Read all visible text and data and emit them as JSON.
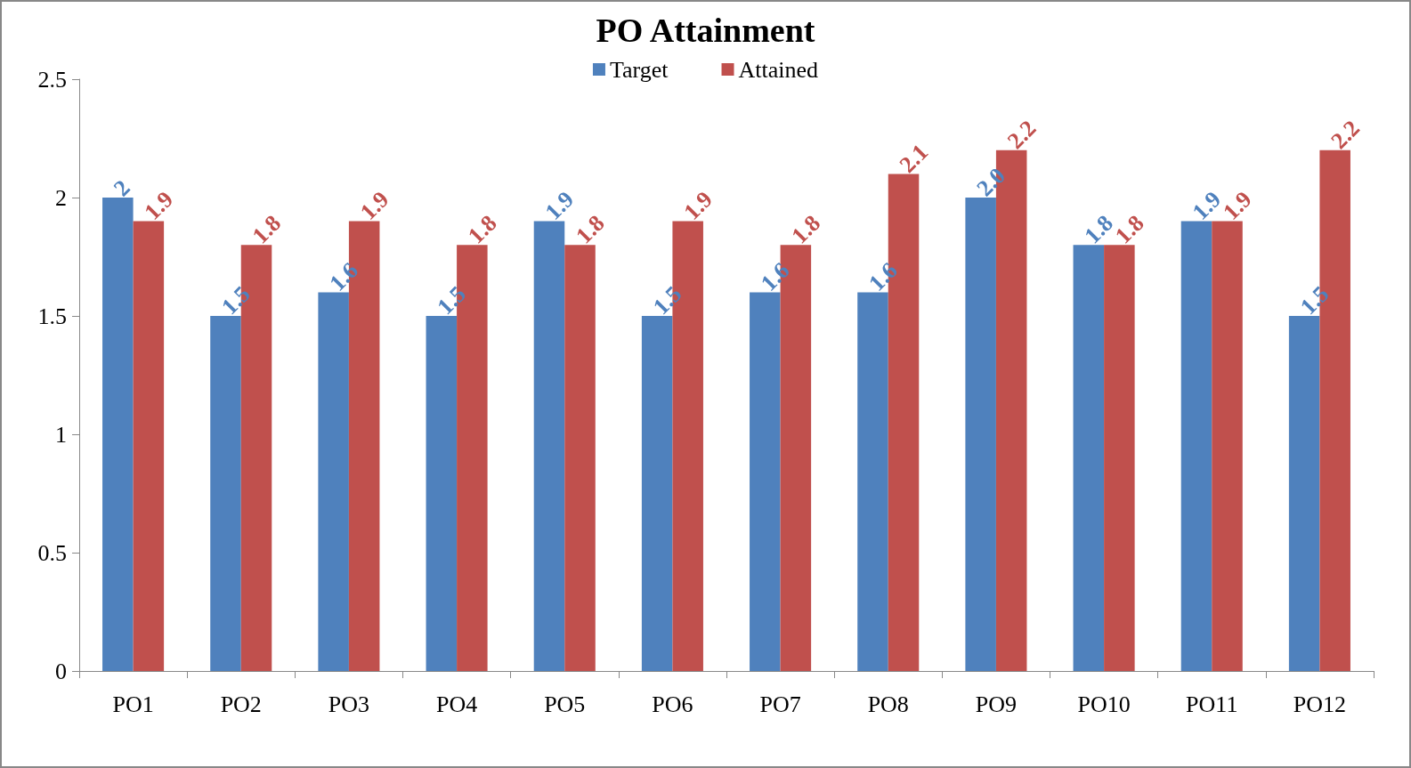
{
  "chart_data": {
    "type": "bar",
    "title": "PO Attainment",
    "categories": [
      "PO1",
      "PO2",
      "PO3",
      "PO4",
      "PO5",
      "PO6",
      "PO7",
      "PO8",
      "PO9",
      "PO10",
      "PO11",
      "PO12"
    ],
    "series": [
      {
        "name": "Target",
        "color": "#4f81bd",
        "values": [
          2,
          1.5,
          1.6,
          1.5,
          1.9,
          1.5,
          1.6,
          1.6,
          2.0,
          1.8,
          1.9,
          1.5
        ],
        "value_labels": [
          "2",
          "1.5",
          "1.6",
          "1.5",
          "1.9",
          "1.5",
          "1.6",
          "1.6",
          "2.0",
          "1.8",
          "1.9",
          "1.5"
        ]
      },
      {
        "name": "Attained",
        "color": "#c0504d",
        "values": [
          1.9,
          1.8,
          1.9,
          1.8,
          1.8,
          1.9,
          1.8,
          2.1,
          2.2,
          1.8,
          1.9,
          2.2
        ],
        "value_labels": [
          "1.9",
          "1.8",
          "1.9",
          "1.8",
          "1.8",
          "1.9",
          "1.8",
          "2.1",
          "2.2",
          "1.8",
          "1.9",
          "2.2"
        ]
      }
    ],
    "ylim": [
      0,
      2.5
    ],
    "yticks": [
      0,
      0.5,
      1,
      1.5,
      2,
      2.5
    ],
    "grid": false,
    "legend": "top"
  }
}
